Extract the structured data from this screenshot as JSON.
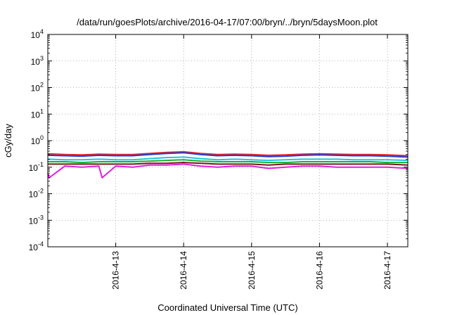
{
  "chart_data": {
    "type": "line",
    "title": "/data/run/goesPlots/archive/2016-04-17/07:00/bryn/../bryn/5daysMoon.plot",
    "xlabel": "Coordinated Universal Time (UTC)",
    "ylabel": "cGy/day",
    "yscale": "log",
    "ylim": [
      0.0001,
      10000
    ],
    "xlim": [
      0,
      5.3
    ],
    "grid": true,
    "y_ticks": [
      {
        "value": 0.0001,
        "base": "10",
        "exp": "-4"
      },
      {
        "value": 0.001,
        "base": "10",
        "exp": "-3"
      },
      {
        "value": 0.01,
        "base": "10",
        "exp": "-2"
      },
      {
        "value": 0.1,
        "base": "10",
        "exp": "-1"
      },
      {
        "value": 1,
        "base": "10",
        "exp": "0"
      },
      {
        "value": 10,
        "base": "10",
        "exp": "1"
      },
      {
        "value": 100,
        "base": "10",
        "exp": "2"
      },
      {
        "value": 1000,
        "base": "10",
        "exp": "3"
      },
      {
        "value": 10000,
        "base": "10",
        "exp": "4"
      }
    ],
    "x_ticks": [
      {
        "value": 1,
        "label": "2016-4-13"
      },
      {
        "value": 2,
        "label": "2016-4-14"
      },
      {
        "value": 3,
        "label": "2016-4-15"
      },
      {
        "value": 4,
        "label": "2016-4-16"
      },
      {
        "value": 5,
        "label": "2016-4-17"
      }
    ],
    "series_colors": {
      "s1": "#e8202a",
      "s2": "#1e3fd0",
      "s3": "#22c4dc",
      "s4": "#18b030",
      "s5": "#7a1520",
      "s6": "#e020e0"
    },
    "series": [
      {
        "x": [
          0,
          0.25,
          0.5,
          0.75,
          1,
          1.25,
          1.5,
          1.75,
          2,
          2.25,
          2.5,
          2.75,
          3,
          3.25,
          3.5,
          3.75,
          4,
          4.25,
          4.5,
          4.75,
          5,
          5.3
        ],
        "values": [
          0.32,
          0.3,
          0.29,
          0.31,
          0.3,
          0.3,
          0.33,
          0.36,
          0.38,
          0.33,
          0.3,
          0.31,
          0.3,
          0.28,
          0.29,
          0.31,
          0.32,
          0.31,
          0.3,
          0.3,
          0.29,
          0.27
        ]
      },
      {
        "x": [
          0,
          0.25,
          0.5,
          0.75,
          1,
          1.25,
          1.5,
          1.75,
          2,
          2.25,
          2.5,
          2.75,
          3,
          3.25,
          3.5,
          3.75,
          4,
          4.25,
          4.5,
          4.75,
          5,
          5.3
        ],
        "values": [
          0.28,
          0.27,
          0.26,
          0.28,
          0.27,
          0.27,
          0.3,
          0.33,
          0.35,
          0.3,
          0.27,
          0.28,
          0.27,
          0.25,
          0.26,
          0.28,
          0.29,
          0.28,
          0.27,
          0.27,
          0.26,
          0.24
        ]
      },
      {
        "x": [
          0,
          0.25,
          0.5,
          0.75,
          1,
          1.25,
          1.5,
          1.75,
          2,
          2.25,
          2.5,
          2.75,
          3,
          3.25,
          3.5,
          3.75,
          4,
          4.25,
          4.5,
          4.75,
          5,
          5.3
        ],
        "values": [
          0.2,
          0.19,
          0.19,
          0.2,
          0.19,
          0.19,
          0.21,
          0.23,
          0.24,
          0.21,
          0.19,
          0.2,
          0.19,
          0.18,
          0.19,
          0.2,
          0.2,
          0.2,
          0.19,
          0.19,
          0.19,
          0.18
        ]
      },
      {
        "x": [
          0,
          0.25,
          0.5,
          0.75,
          1,
          1.25,
          1.5,
          1.75,
          2,
          2.25,
          2.5,
          2.75,
          3,
          3.25,
          3.5,
          3.75,
          4,
          4.25,
          4.5,
          4.75,
          5,
          5.3
        ],
        "values": [
          0.16,
          0.16,
          0.15,
          0.16,
          0.16,
          0.16,
          0.17,
          0.18,
          0.19,
          0.17,
          0.16,
          0.16,
          0.16,
          0.15,
          0.15,
          0.16,
          0.16,
          0.16,
          0.16,
          0.16,
          0.15,
          0.15
        ]
      },
      {
        "x": [
          0,
          0.25,
          0.5,
          0.75,
          1,
          1.25,
          1.5,
          1.75,
          2,
          2.25,
          2.5,
          2.75,
          3,
          3.25,
          3.5,
          3.75,
          4,
          4.25,
          4.5,
          4.75,
          5,
          5.3
        ],
        "values": [
          0.13,
          0.13,
          0.13,
          0.13,
          0.13,
          0.13,
          0.14,
          0.14,
          0.15,
          0.14,
          0.13,
          0.13,
          0.13,
          0.12,
          0.13,
          0.13,
          0.13,
          0.13,
          0.13,
          0.13,
          0.13,
          0.12
        ]
      },
      {
        "x": [
          0,
          0.02,
          0.25,
          0.5,
          0.75,
          0.8,
          1,
          1.25,
          1.5,
          1.75,
          2,
          2.25,
          2.5,
          2.75,
          3,
          3.25,
          3.5,
          3.75,
          4,
          4.25,
          4.5,
          4.75,
          5,
          5.3
        ],
        "values": [
          0.06,
          0.04,
          0.11,
          0.1,
          0.11,
          0.04,
          0.11,
          0.1,
          0.12,
          0.12,
          0.13,
          0.11,
          0.1,
          0.11,
          0.11,
          0.09,
          0.1,
          0.11,
          0.11,
          0.1,
          0.1,
          0.1,
          0.1,
          0.09
        ]
      }
    ]
  }
}
